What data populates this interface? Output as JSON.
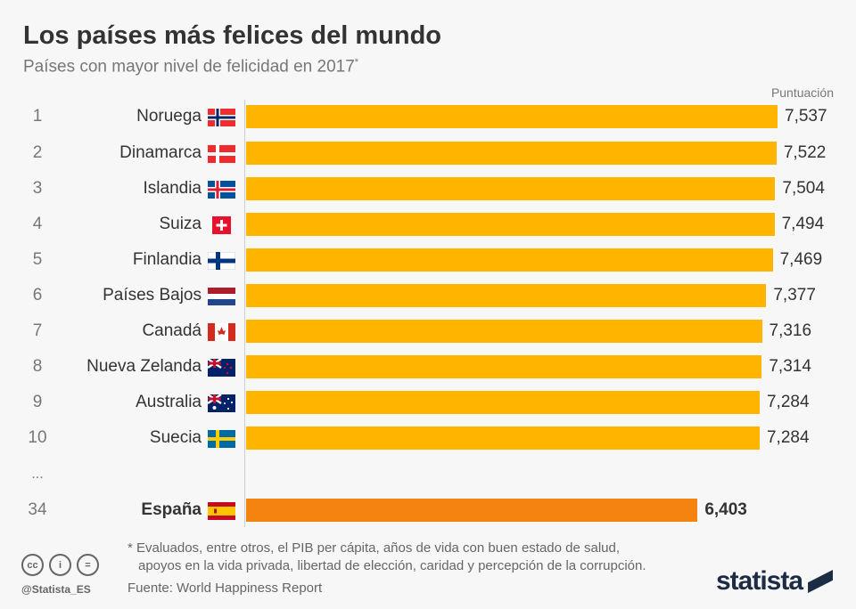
{
  "title": "Los países más felices del mundo",
  "subtitle": "Países con mayor nivel de felicidad en 2017",
  "subtitle_mark": "*",
  "colors": {
    "bar": "#ffb400",
    "highlight": "#f5830f",
    "background": "#f7f7f7"
  },
  "chart_data": {
    "type": "bar",
    "orientation": "horizontal",
    "unit_label": "Puntuación",
    "xlim": [
      0,
      7.537
    ],
    "grid": false,
    "rows": [
      {
        "rank": "1",
        "country": "Noruega",
        "flag": "NO",
        "value": 7.537,
        "label": "7,537"
      },
      {
        "rank": "2",
        "country": "Dinamarca",
        "flag": "DK",
        "value": 7.522,
        "label": "7,522"
      },
      {
        "rank": "3",
        "country": "Islandia",
        "flag": "IS",
        "value": 7.504,
        "label": "7,504"
      },
      {
        "rank": "4",
        "country": "Suiza",
        "flag": "CH",
        "value": 7.494,
        "label": "7,494"
      },
      {
        "rank": "5",
        "country": "Finlandia",
        "flag": "FI",
        "value": 7.469,
        "label": "7,469"
      },
      {
        "rank": "6",
        "country": "Países Bajos",
        "flag": "NL",
        "value": 7.377,
        "label": "7,377"
      },
      {
        "rank": "7",
        "country": "Canadá",
        "flag": "CA",
        "value": 7.316,
        "label": "7,316"
      },
      {
        "rank": "8",
        "country": "Nueva Zelanda",
        "flag": "NZ",
        "value": 7.314,
        "label": "7,314"
      },
      {
        "rank": "9",
        "country": "Australia",
        "flag": "AU",
        "value": 7.284,
        "label": "7,284"
      },
      {
        "rank": "10",
        "country": "Suecia",
        "flag": "SE",
        "value": 7.284,
        "label": "7,284"
      },
      {
        "rank": "34",
        "country": "España",
        "flag": "ES",
        "value": 6.403,
        "label": "6,403",
        "highlight": true
      }
    ],
    "gap_marker": "..."
  },
  "footer": {
    "note_line1": "* Evaluados, entre otros, el PIB per cápita, años de vida con buen estado de salud,",
    "note_line2": "apoyos en la vida privada, libertad de elección, caridad y percepción de la corrupción.",
    "source": "Fuente: World Happiness Report",
    "handle": "@Statista_ES",
    "logo": "statista",
    "license_icons": [
      "cc",
      "i",
      "="
    ]
  }
}
